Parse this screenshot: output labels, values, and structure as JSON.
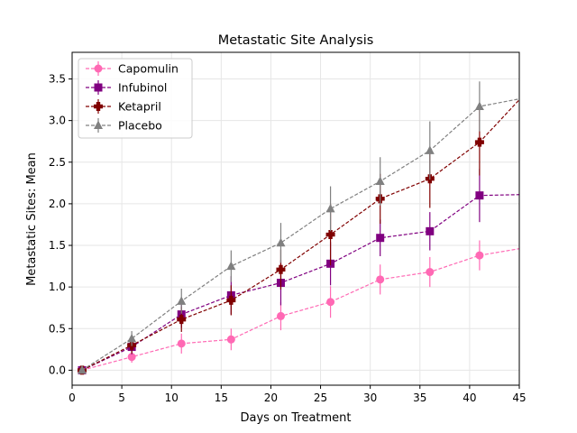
{
  "chart_data": {
    "type": "line",
    "title": "Metastatic Site Analysis",
    "xlabel": "Days on Treatment",
    "ylabel": "Metastatic Sites: Mean",
    "xlim": [
      0,
      45
    ],
    "ylim": [
      -0.18,
      3.82
    ],
    "xticks": [
      0,
      5,
      10,
      15,
      20,
      25,
      30,
      35,
      40,
      45
    ],
    "xtick_labels": [
      "0",
      "5",
      "10",
      "15",
      "20",
      "25",
      "30",
      "35",
      "40",
      "45"
    ],
    "yticks": [
      0.0,
      0.5,
      1.0,
      1.5,
      2.0,
      2.5,
      3.0,
      3.5
    ],
    "ytick_labels": [
      "0.0",
      "0.5",
      "1.0",
      "1.5",
      "2.0",
      "2.5",
      "3.0",
      "3.5"
    ],
    "grid": true,
    "legend_position": "top-left",
    "x": [
      1,
      6,
      11,
      16,
      21,
      26,
      31,
      36,
      41
    ],
    "series": [
      {
        "name": "Capomulin",
        "color": "#ff69b4",
        "marker": "circle",
        "values": [
          0.0,
          0.16,
          0.32,
          0.37,
          0.65,
          0.82,
          1.09,
          1.18,
          1.38
        ],
        "errors": [
          0.0,
          0.07,
          0.12,
          0.13,
          0.17,
          0.19,
          0.18,
          0.18,
          0.18
        ],
        "tail": [
          45,
          1.46
        ]
      },
      {
        "name": "Infubinol",
        "color": "#800080",
        "marker": "square",
        "values": [
          0.0,
          0.28,
          0.67,
          0.9,
          1.05,
          1.28,
          1.59,
          1.67,
          2.1
        ],
        "errors": [
          0.0,
          0.09,
          0.16,
          0.23,
          0.27,
          0.26,
          0.22,
          0.23,
          0.32
        ],
        "tail": [
          45,
          2.11
        ]
      },
      {
        "name": "Ketapril",
        "color": "#800000",
        "marker": "plus",
        "values": [
          0.0,
          0.3,
          0.61,
          0.84,
          1.21,
          1.63,
          2.06,
          2.3,
          2.74
        ],
        "errors": [
          0.0,
          0.1,
          0.15,
          0.18,
          0.24,
          0.37,
          0.3,
          0.35,
          0.4
        ],
        "tail": [
          45,
          3.25
        ]
      },
      {
        "name": "Placebo",
        "color": "#808080",
        "marker": "triangle",
        "values": [
          0.0,
          0.38,
          0.83,
          1.25,
          1.53,
          1.94,
          2.27,
          2.64,
          3.17
        ],
        "errors": [
          0.0,
          0.09,
          0.15,
          0.19,
          0.24,
          0.27,
          0.29,
          0.35,
          0.3
        ],
        "tail": [
          45,
          3.26
        ]
      }
    ]
  }
}
